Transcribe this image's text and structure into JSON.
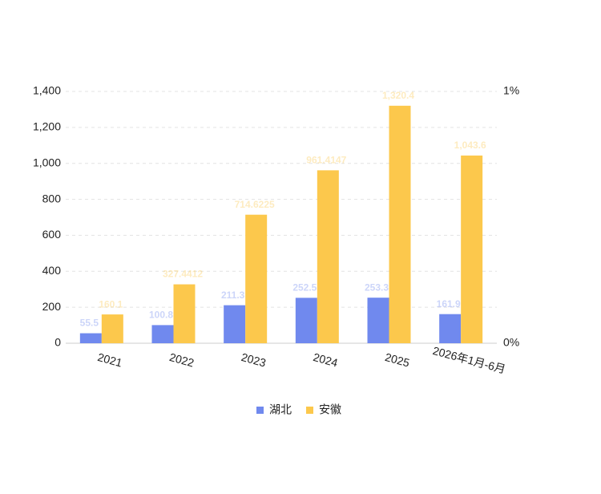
{
  "chart_data": {
    "type": "bar",
    "categories": [
      "2021",
      "2022",
      "2023",
      "2024",
      "2025",
      "2026年1月-6月"
    ],
    "series": [
      {
        "name": "湖北",
        "color": "#7089ee",
        "values": [
          55.5,
          100.8,
          211.3,
          252.5,
          253.3,
          161.9
        ],
        "value_labels": [
          "55.5",
          "100.8",
          "211.3",
          "252.5",
          "253.3",
          "161.9"
        ]
      },
      {
        "name": "安徽",
        "color": "#fcc84c",
        "values": [
          160.1,
          327.4412,
          714.6225,
          961.4147,
          1320.4,
          1043.6
        ],
        "value_labels": [
          "160.1",
          "327.4412",
          "714.6225",
          "961.4147",
          "1,320.4",
          "1,043.6"
        ]
      }
    ],
    "ylim": [
      0,
      1400
    ],
    "yticks": [
      0,
      200,
      400,
      600,
      800,
      {
        "value": 1000,
        "label": "1,000"
      },
      {
        "value": 1200,
        "label": "1,200"
      },
      {
        "value": 1400,
        "label": "1,400"
      }
    ],
    "y2lim": [
      0,
      1
    ],
    "y2ticks": [
      {
        "value": 0,
        "label": "0%"
      },
      {
        "value": 1,
        "label": "1%"
      }
    ],
    "grid": true,
    "legend": "bottom"
  }
}
